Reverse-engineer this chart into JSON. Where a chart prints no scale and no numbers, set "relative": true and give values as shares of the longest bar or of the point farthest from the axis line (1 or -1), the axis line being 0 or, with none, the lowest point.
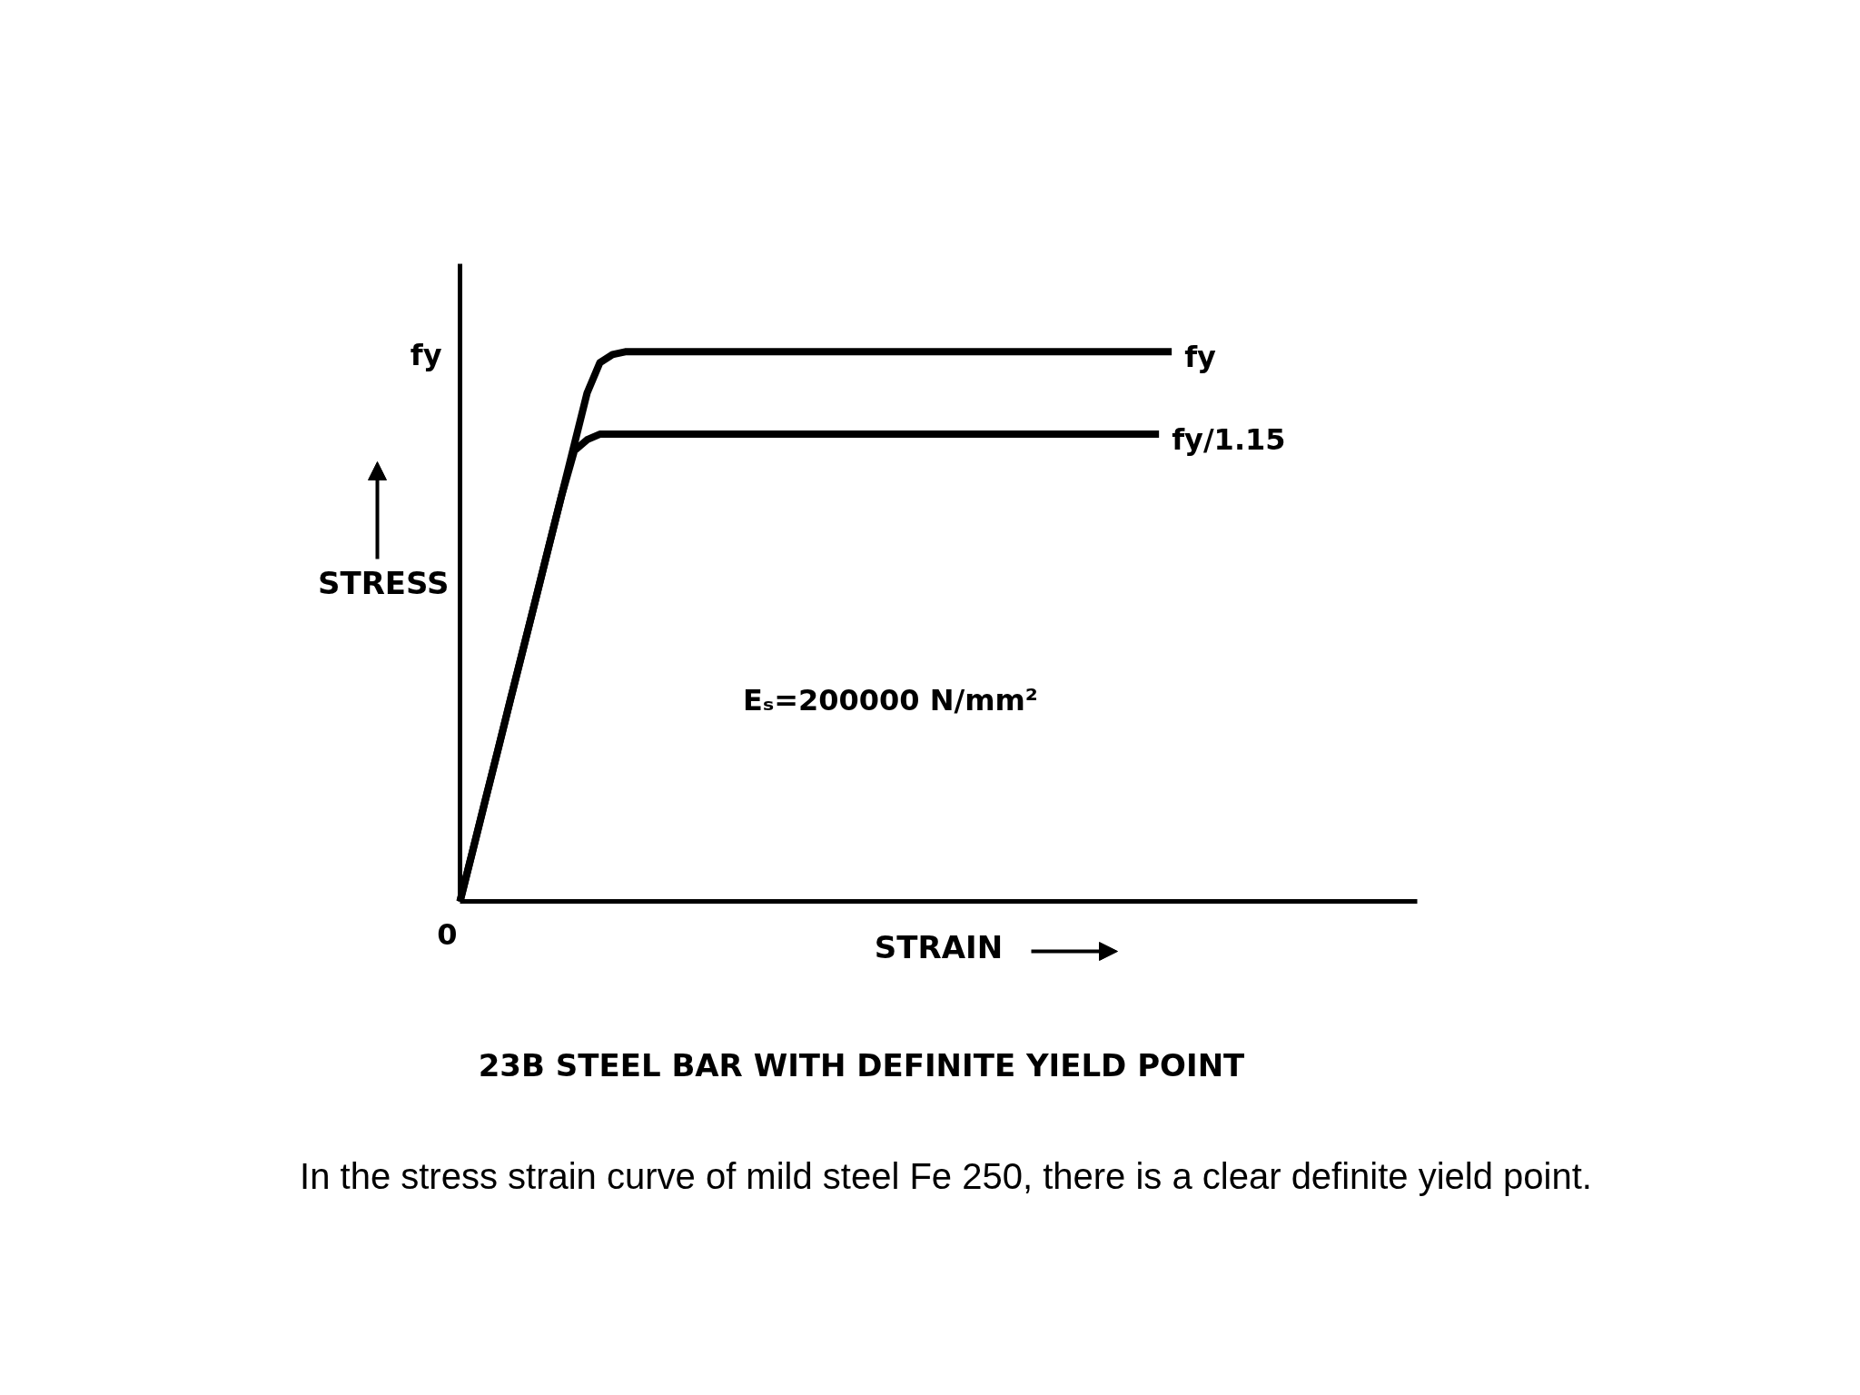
{
  "chart_data": {
    "type": "line",
    "title": "23B STEEL BAR WITH DEFINITE YIELD POINT",
    "xlabel": "STRAIN",
    "ylabel": "STRESS",
    "relative": true,
    "line_style": "solid",
    "categories": [
      null,
      null,
      null,
      null,
      null,
      null,
      null,
      null,
      null,
      null,
      null,
      null,
      null,
      null,
      null,
      null,
      null,
      null,
      null,
      null,
      null,
      null,
      null,
      null,
      null,
      null,
      null,
      null,
      null,
      null,
      null,
      null,
      null,
      null,
      null,
      null,
      null,
      null,
      null,
      null,
      null,
      null,
      null,
      null,
      null,
      null,
      null,
      null,
      null,
      null,
      null,
      null,
      null,
      null,
      null,
      null,
      null
    ],
    "series": [
      {
        "name": "fy",
        "color": "#000000",
        "values": [
          0,
          0.092,
          0.185,
          0.277,
          0.37,
          0.462,
          0.554,
          0.647,
          0.739,
          0.832,
          0.925,
          0.98,
          0.995,
          1,
          1,
          1,
          1,
          1,
          1,
          1,
          1,
          1,
          1,
          1,
          1,
          1,
          1,
          1,
          1,
          1,
          1,
          1,
          1,
          1,
          1,
          1,
          1,
          1,
          1,
          1,
          1,
          1,
          1,
          1,
          1,
          1,
          1,
          1,
          1,
          1,
          1,
          1,
          1,
          1,
          1,
          1,
          1
        ]
      },
      {
        "name": "fy/1.15",
        "color": "#000000",
        "values": [
          0,
          0.092,
          0.185,
          0.277,
          0.37,
          0.462,
          0.554,
          0.647,
          0.739,
          0.82,
          0.84,
          0.85,
          0.85,
          0.85,
          0.85,
          0.85,
          0.85,
          0.85,
          0.85,
          0.85,
          0.85,
          0.85,
          0.85,
          0.85,
          0.85,
          0.85,
          0.85,
          0.85,
          0.85,
          0.85,
          0.85,
          0.85,
          0.85,
          0.85,
          0.85,
          0.85,
          0.85,
          0.85,
          0.85,
          0.85,
          0.85,
          0.85,
          0.85,
          0.85,
          0.85,
          0.85,
          0.85,
          0.85,
          0.85,
          0.85,
          0.85,
          0.85,
          0.85,
          0.85,
          0.85,
          0.85,
          null
        ]
      }
    ],
    "annotations": [
      "fy",
      "0",
      "Eₛ=200000 N/mm²",
      "In the stress strain curve of mild steel Fe 250, there is a clear definite yield point."
    ]
  }
}
